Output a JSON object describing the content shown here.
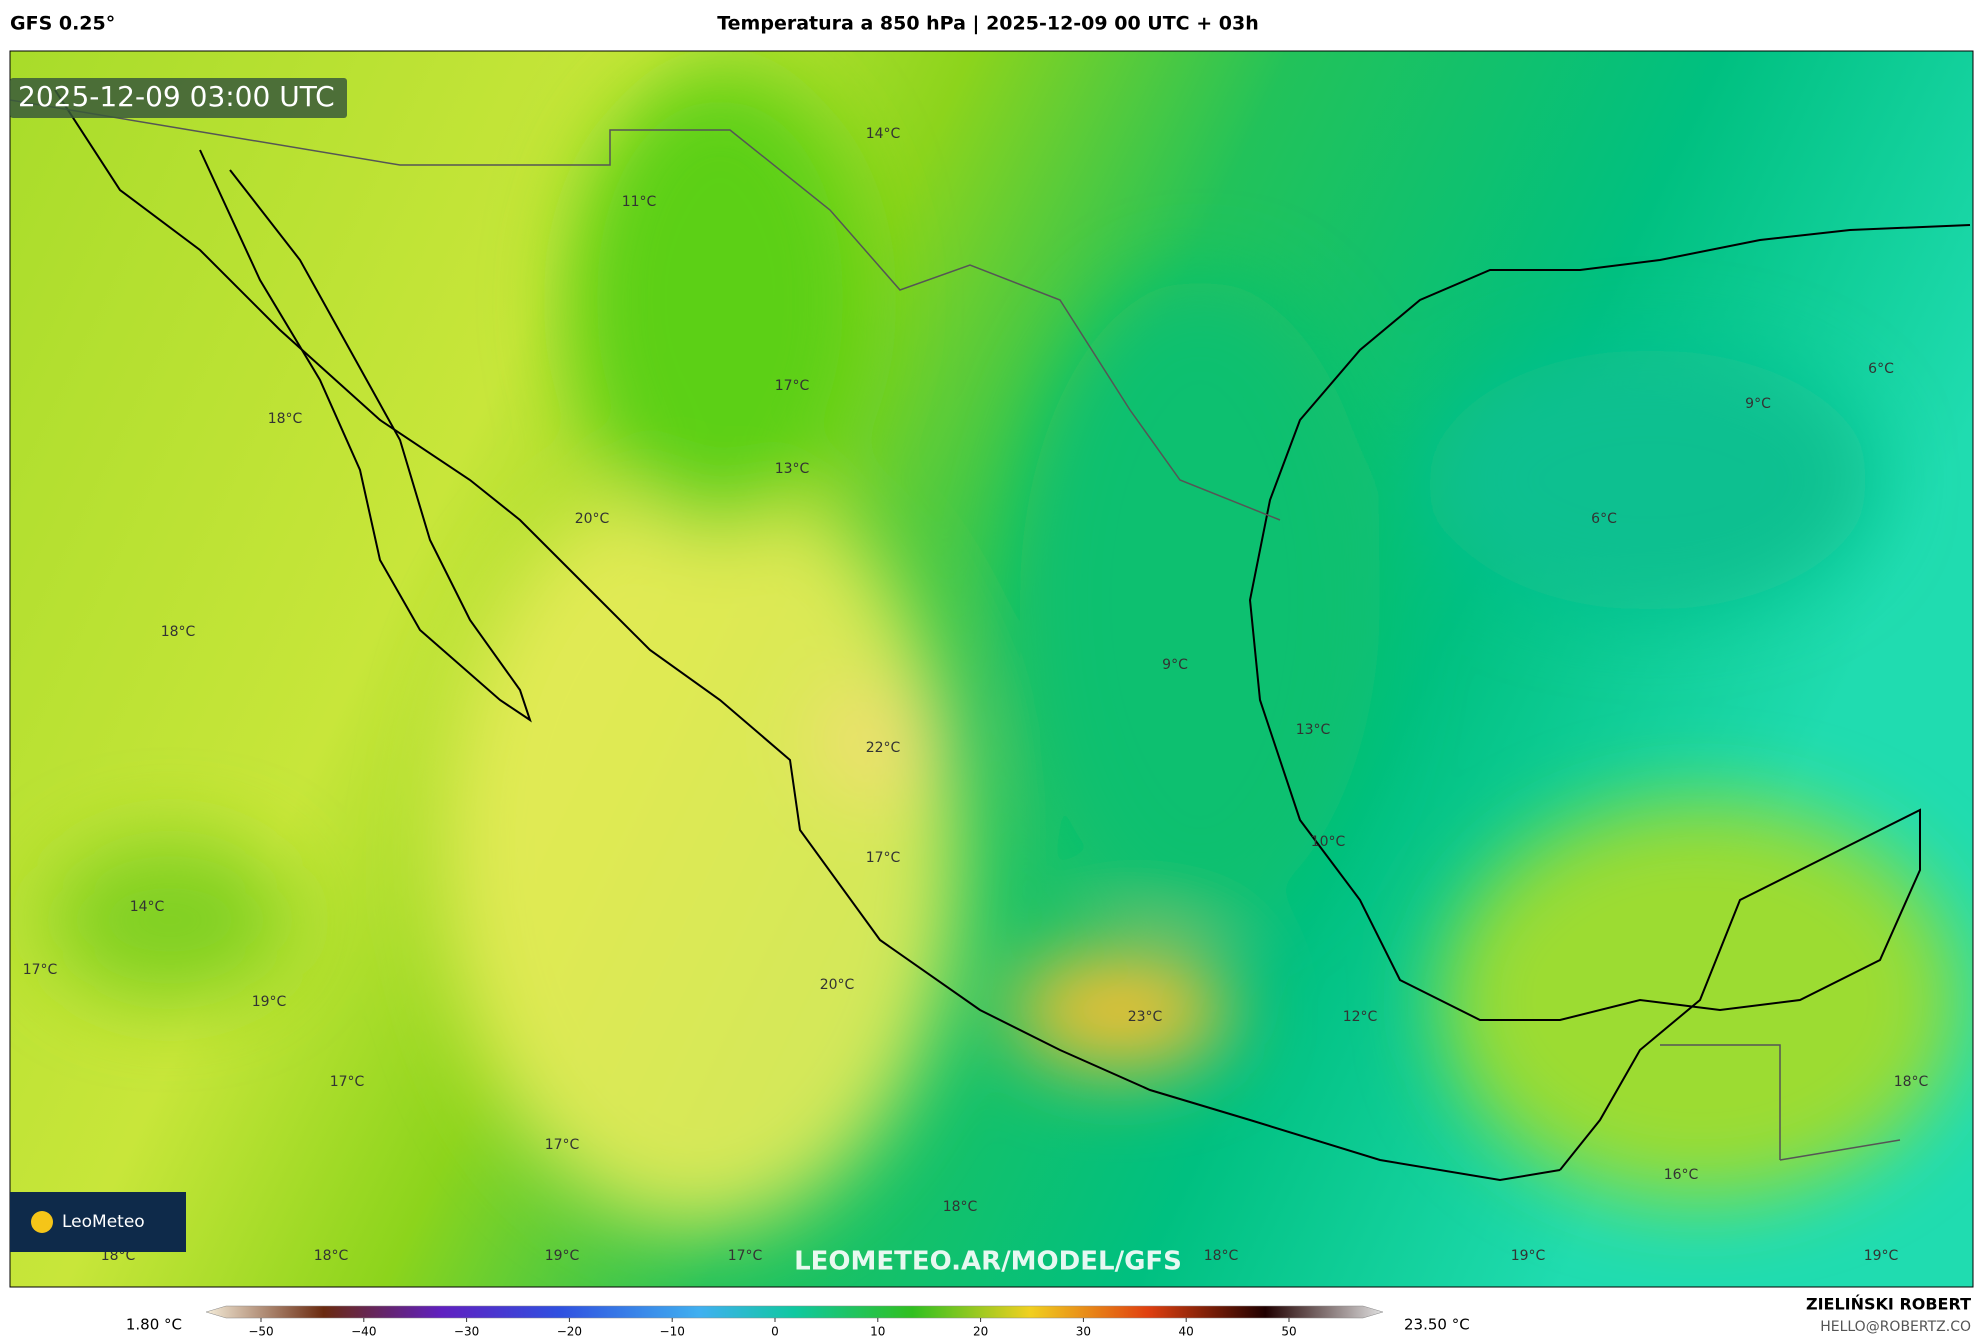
{
  "header": {
    "model": "GFS 0.25°",
    "title": "Temperatura a 850 hPa | 2025-12-09 00 UTC + 03h"
  },
  "map": {
    "timestamp": "2025-12-09 03:00 UTC",
    "watermark": "LEOMETEO.AR/MODEL/GFS",
    "logo": "LeoMeteo",
    "labels": [
      "14°C",
      "11°C",
      "17°C",
      "13°C",
      "18°C",
      "20°C",
      "18°C",
      "9°C",
      "22°C",
      "13°C",
      "10°C",
      "17°C",
      "14°C",
      "17°C",
      "19°C",
      "20°C",
      "23°C",
      "12°C",
      "17°C",
      "17°C",
      "18°C",
      "18°C",
      "18°C",
      "19°C",
      "17°C",
      "18°C",
      "19°C",
      "19°C",
      "16°C",
      "18°C",
      "9°C",
      "6°C",
      "6°C"
    ]
  },
  "colorbar": {
    "min_label": "1.80 °C",
    "max_label": "23.50 °C",
    "ticks": [
      "−50",
      "−40",
      "−30",
      "−20",
      "−10",
      "0",
      "10",
      "20",
      "30",
      "40",
      "50"
    ]
  },
  "credits": {
    "author": "ZIELIŃSKI ROBERT",
    "email": "HELLO@ROBERTZ.CO"
  }
}
